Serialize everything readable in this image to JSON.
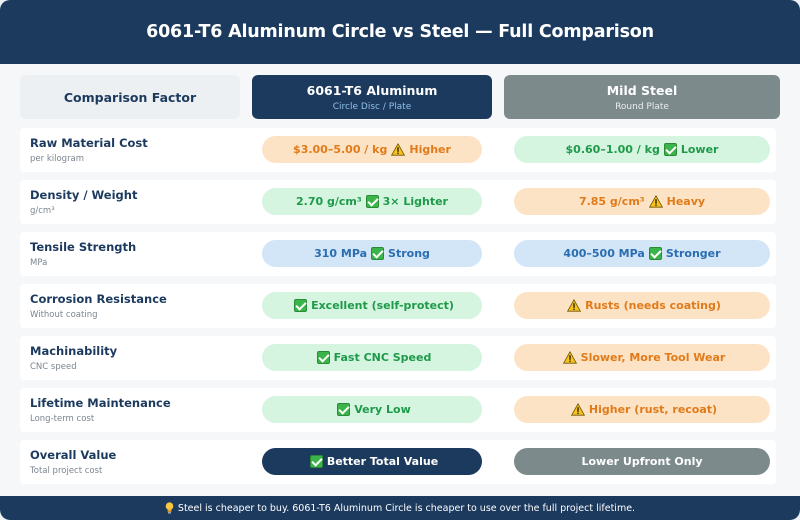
{
  "title": "6061-T6 Aluminum Circle vs Steel — Full Comparison",
  "headers": {
    "factor": "Comparison Factor",
    "aluminum": {
      "title": "6061-T6 Aluminum",
      "subtitle": "Circle Disc / Plate"
    },
    "steel": {
      "title": "Mild Steel",
      "subtitle": "Round Plate"
    }
  },
  "rows": [
    {
      "name": "Raw Material Cost",
      "unit": "per kilogram",
      "aluminum": {
        "text": "$3.00–5.00 / kg",
        "icon": "warning-icon",
        "note": "Higher",
        "style": "orange"
      },
      "steel": {
        "text": "$0.60–1.00 / kg",
        "icon": "check-icon",
        "note": "Lower",
        "style": "green"
      }
    },
    {
      "name": "Density / Weight",
      "unit": "g/cm³",
      "aluminum": {
        "text": "2.70 g/cm³",
        "icon": "check-icon",
        "note": "3× Lighter",
        "style": "green"
      },
      "steel": {
        "text": "7.85 g/cm³",
        "icon": "warning-icon",
        "note": "Heavy",
        "style": "orange"
      }
    },
    {
      "name": "Tensile Strength",
      "unit": "MPa",
      "aluminum": {
        "text": "310 MPa",
        "icon": "check-icon",
        "note": "Strong",
        "style": "blue"
      },
      "steel": {
        "text": "400–500 MPa",
        "icon": "check-icon",
        "note": "Stronger",
        "style": "blue"
      }
    },
    {
      "name": "Corrosion Resistance",
      "unit": "Without coating",
      "aluminum": {
        "text": "",
        "icon": "check-icon",
        "note": "Excellent (self-protect)",
        "style": "green"
      },
      "steel": {
        "text": "",
        "icon": "warning-icon",
        "note": "Rusts (needs coating)",
        "style": "orange"
      }
    },
    {
      "name": "Machinability",
      "unit": "CNC speed",
      "aluminum": {
        "text": "",
        "icon": "check-icon",
        "note": "Fast CNC Speed",
        "style": "green"
      },
      "steel": {
        "text": "",
        "icon": "warning-icon",
        "note": "Slower, More Tool Wear",
        "style": "orange"
      }
    },
    {
      "name": "Lifetime Maintenance",
      "unit": "Long-term cost",
      "aluminum": {
        "text": "",
        "icon": "check-icon",
        "note": "Very Low",
        "style": "green"
      },
      "steel": {
        "text": "",
        "icon": "warning-icon",
        "note": "Higher (rust, recoat)",
        "style": "orange"
      }
    },
    {
      "name": "Overall Value",
      "unit": "Total project cost",
      "aluminum": {
        "text": "",
        "icon": "check-icon",
        "note": "Better Total Value",
        "style": "navy"
      },
      "steel": {
        "text": "",
        "icon": "",
        "note": "Lower Upfront Only",
        "style": "grey"
      }
    }
  ],
  "footer": {
    "icon": "lightbulb-icon",
    "text": "Steel is cheaper to buy. 6061-T6 Aluminum Circle is cheaper to use over the full project lifetime."
  },
  "colors": {
    "navy": "#1c3a5e",
    "grey": "#7d8a8c",
    "orange": "#e07b1a",
    "green": "#1e9a4a",
    "blue": "#2a6db0"
  }
}
